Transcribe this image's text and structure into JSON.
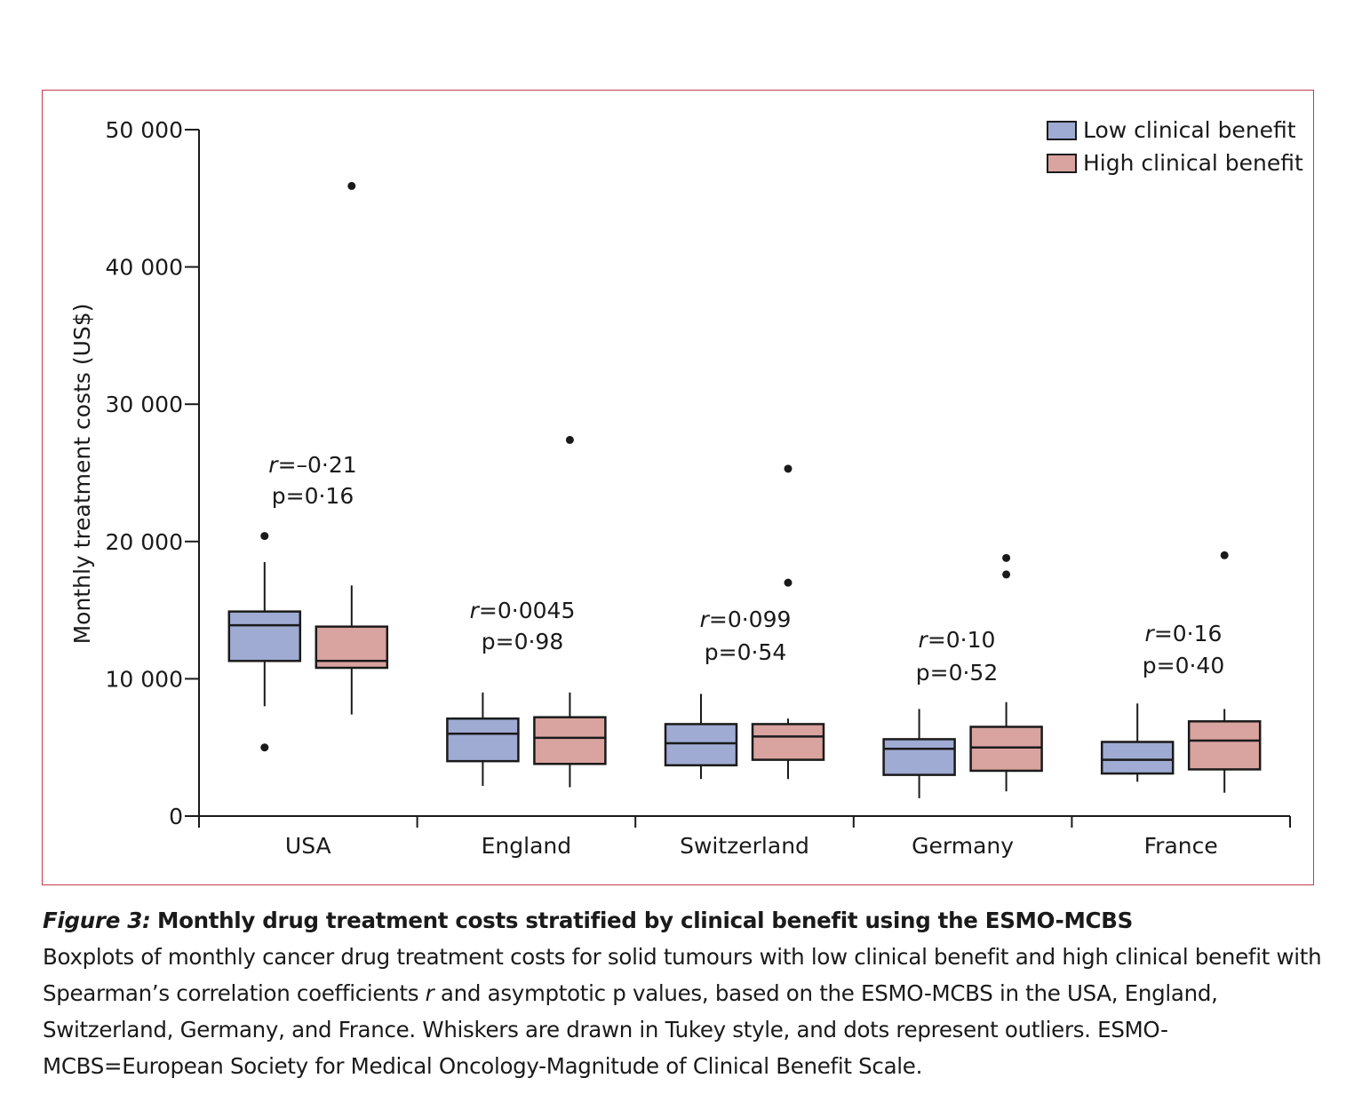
{
  "chart_data": {
    "type": "boxplot",
    "ylabel": "Monthly treatment costs (US$)",
    "xlabel": "",
    "ylim": [
      0,
      50000
    ],
    "y_ticks": [
      {
        "value": 0,
        "label": "0"
      },
      {
        "value": 10000,
        "label": "10 000"
      },
      {
        "value": 20000,
        "label": "20 000"
      },
      {
        "value": 30000,
        "label": "30 000"
      },
      {
        "value": 40000,
        "label": "40 000"
      },
      {
        "value": 50000,
        "label": "50 000"
      }
    ],
    "legend": {
      "position": "top-right",
      "entries": [
        {
          "name": "Low clinical benefit",
          "color": "#9fabd3"
        },
        {
          "name": "High clinical benefit",
          "color": "#d9a3a0"
        }
      ]
    },
    "categories": [
      "USA",
      "England",
      "Switzerland",
      "Germany",
      "France"
    ],
    "series": [
      {
        "name": "Low clinical benefit",
        "color": "#9fabd3",
        "boxes": [
          {
            "whisker_low": 8000,
            "q1": 11300,
            "median": 13900,
            "q3": 14900,
            "whisker_high": 18500,
            "outliers": [
              20400,
              5000
            ]
          },
          {
            "whisker_low": 2200,
            "q1": 4000,
            "median": 6000,
            "q3": 7100,
            "whisker_high": 9000,
            "outliers": []
          },
          {
            "whisker_low": 2700,
            "q1": 3700,
            "median": 5300,
            "q3": 6700,
            "whisker_high": 8900,
            "outliers": []
          },
          {
            "whisker_low": 1300,
            "q1": 3000,
            "median": 4900,
            "q3": 5600,
            "whisker_high": 7800,
            "outliers": []
          },
          {
            "whisker_low": 2500,
            "q1": 3100,
            "median": 4100,
            "q3": 5400,
            "whisker_high": 8200,
            "outliers": []
          }
        ]
      },
      {
        "name": "High clinical benefit",
        "color": "#d9a3a0",
        "boxes": [
          {
            "whisker_low": 7400,
            "q1": 10800,
            "median": 11300,
            "q3": 13800,
            "whisker_high": 16800,
            "outliers": [
              45900
            ]
          },
          {
            "whisker_low": 2100,
            "q1": 3800,
            "median": 5700,
            "q3": 7200,
            "whisker_high": 9000,
            "outliers": [
              27400
            ]
          },
          {
            "whisker_low": 2700,
            "q1": 4100,
            "median": 5800,
            "q3": 6700,
            "whisker_high": 7100,
            "outliers": [
              25300,
              17000
            ]
          },
          {
            "whisker_low": 1800,
            "q1": 3300,
            "median": 5000,
            "q3": 6500,
            "whisker_high": 8300,
            "outliers": [
              18800,
              17600
            ]
          },
          {
            "whisker_low": 1700,
            "q1": 3400,
            "median": 5500,
            "q3": 6900,
            "whisker_high": 7800,
            "outliers": [
              19000
            ]
          }
        ]
      }
    ],
    "annotations": [
      {
        "category": "USA",
        "r_label": "r",
        "r_value": "=–0·21",
        "p_label": "p=0·16"
      },
      {
        "category": "England",
        "r_label": "r",
        "r_value": "=0·0045",
        "p_label": "p=0·98"
      },
      {
        "category": "Switzerland",
        "r_label": "r",
        "r_value": "=0·099",
        "p_label": "p=0·54"
      },
      {
        "category": "Germany",
        "r_label": "r",
        "r_value": "=0·10",
        "p_label": "p=0·52"
      },
      {
        "category": "France",
        "r_label": "r",
        "r_value": "=0·16",
        "p_label": "p=0·40"
      }
    ]
  },
  "caption": {
    "label": "Figure 3:",
    "title": "Monthly drug treatment costs stratified by clinical benefit using the ESMO-MCBS",
    "body_1": "Boxplots of monthly cancer drug treatment costs for solid tumours with low clinical benefit and high clinical benefit with Spearman’s correlation coefficients ",
    "body_r": "r",
    "body_2": " and asymptotic p values, based on the ESMO-MCBS in the USA, England, Switzerland, Germany, and France. Whiskers are drawn in Tukey style, and dots represent outliers. ESMO-MCBS=European Society for Medical Oncology-Magnitude of Clinical Benefit Scale."
  },
  "colors": {
    "frame": "#c23b4e",
    "axis": "#1a1a1a"
  }
}
